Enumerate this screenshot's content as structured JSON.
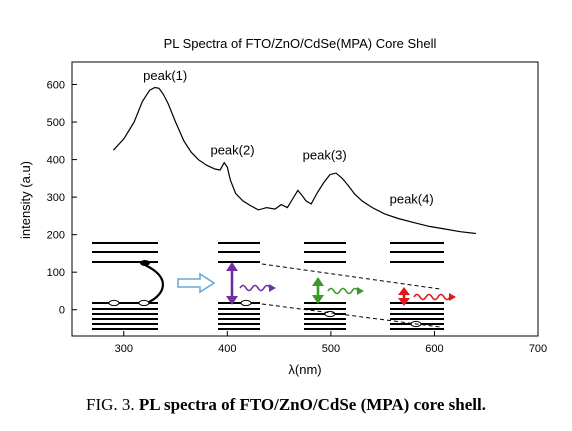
{
  "chart_data": {
    "type": "line",
    "title": "PL Spectra of  FTO/ZnO/CdSe(MPA) Core Shell",
    "xlabel": "λ(nm)",
    "ylabel": "intensity (a.u)",
    "xlim": [
      250,
      700
    ],
    "ylim": [
      -70,
      660
    ],
    "x_ticks": [
      300,
      400,
      500,
      600,
      700
    ],
    "y_ticks": [
      0,
      100,
      200,
      300,
      400,
      500,
      600
    ],
    "grid": false,
    "series": [
      {
        "color": "#000000",
        "x": [
          290,
          300,
          310,
          318,
          325,
          330,
          334,
          338,
          343,
          350,
          358,
          365,
          372,
          380,
          388,
          393,
          397,
          400,
          403,
          408,
          415,
          422,
          430,
          438,
          446,
          452,
          458,
          463,
          468,
          472,
          476,
          481,
          487,
          493,
          499,
          505,
          511,
          517,
          523,
          530,
          540,
          552,
          565,
          580,
          595,
          610,
          625,
          640
        ],
        "y": [
          425,
          455,
          500,
          555,
          585,
          592,
          590,
          575,
          548,
          500,
          450,
          420,
          400,
          385,
          375,
          372,
          392,
          380,
          345,
          310,
          290,
          278,
          266,
          272,
          268,
          280,
          272,
          295,
          318,
          305,
          290,
          282,
          312,
          338,
          360,
          364,
          350,
          330,
          308,
          290,
          272,
          255,
          243,
          232,
          222,
          215,
          208,
          203
        ]
      }
    ],
    "annotations": [
      {
        "text": "peak(1)",
        "x": 340,
        "y": 612
      },
      {
        "text": "peak(2)",
        "x": 405,
        "y": 413
      },
      {
        "text": "peak(3)",
        "x": 494,
        "y": 400
      },
      {
        "text": "peak(4)",
        "x": 578,
        "y": 283
      }
    ]
  },
  "caption": {
    "prefix": "FIG. 3. ",
    "bold": "PL spectra of FTO/ZnO/CdSe (MPA) core shell."
  },
  "inset_colors": {
    "purple": "#7030a0",
    "green": "#3a9a28",
    "red": "#e0161b",
    "blue_arrow": "#6aa9d8"
  }
}
